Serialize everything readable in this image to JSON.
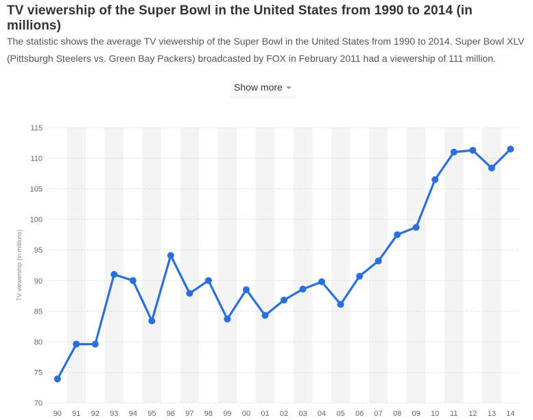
{
  "header": {
    "title": "TV viewership of the Super Bowl in the United States from 1990 to 2014 (in millions)",
    "description": "The statistic shows the average TV viewership of the Super Bowl in the United States from 1990 to 2014. Super Bowl XLV (Pittsburgh Steelers vs. Green Bay Packers) broadcasted by FOX in February 2011 had a viewership of 111 million.",
    "show_more_label": "Show more"
  },
  "chart_data": {
    "type": "line",
    "title": "",
    "xlabel": "",
    "ylabel": "TV viewership (in millions)",
    "categories": [
      "90",
      "91",
      "92",
      "93",
      "94",
      "95",
      "96",
      "97",
      "98",
      "99",
      "00",
      "01",
      "02",
      "03",
      "04",
      "05",
      "06",
      "07",
      "08",
      "09",
      "10",
      "11",
      "12",
      "13",
      "14"
    ],
    "series": [
      {
        "values": [
          73.9,
          79.6,
          79.6,
          91.0,
          90.0,
          83.4,
          94.1,
          87.9,
          90.0,
          83.7,
          88.5,
          84.3,
          86.8,
          88.6,
          89.8,
          86.1,
          90.7,
          93.2,
          97.5,
          98.7,
          106.5,
          111.0,
          111.3,
          108.4,
          111.5
        ]
      }
    ],
    "ylim": [
      70,
      115
    ],
    "yticks": [
      70,
      75,
      80,
      85,
      90,
      95,
      100,
      105,
      110,
      115
    ],
    "grid": true,
    "line_color": "#2a6fdb"
  }
}
